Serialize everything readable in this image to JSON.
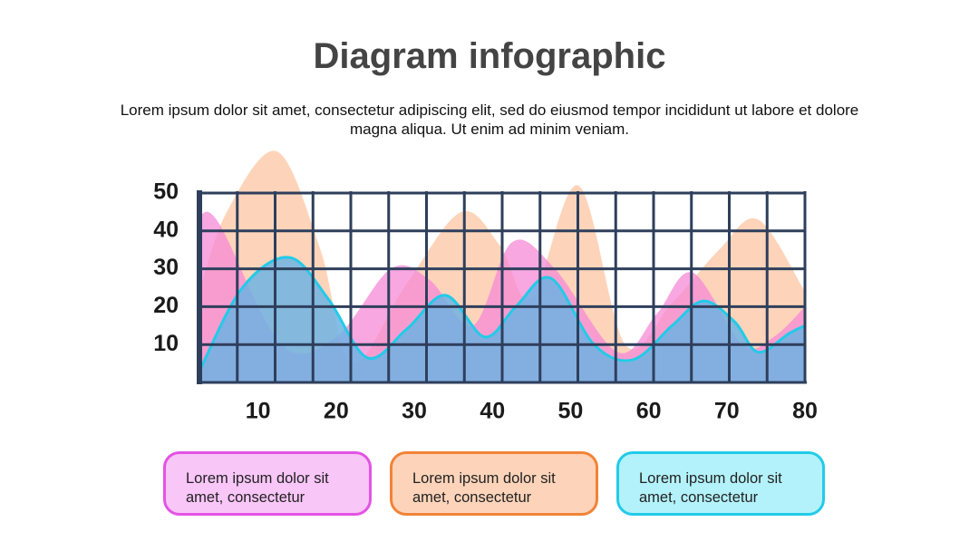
{
  "chart_data": {
    "type": "area",
    "title": "Diagram infographic",
    "subtitle": "Lorem ipsum dolor sit amet, consectetur adipiscing elit, sed do eiusmod tempor incididunt ut labore et dolore magna aliqua. Ut enim ad minim veniam.",
    "xlim": [
      2.5,
      80
    ],
    "xticks": [
      10,
      20,
      30,
      40,
      50,
      60,
      70,
      80
    ],
    "ylim": [
      0,
      50
    ],
    "yticks": [
      10,
      20,
      30,
      40,
      50
    ],
    "grid": true,
    "series": [
      {
        "name": "Lorem ipsum dolor sit amet, consectetur",
        "color": "#f58ad6",
        "line_color": "#e353e3",
        "box_color": "#f9c6f8",
        "x": [
          2.5,
          5,
          13,
          20,
          27,
          32,
          37.5,
          42.5,
          48,
          56,
          61,
          65.6,
          72,
          76,
          80
        ],
        "values": [
          44,
          42,
          10,
          12,
          30,
          27,
          15,
          37,
          30,
          8,
          18,
          29,
          10,
          12,
          20
        ]
      },
      {
        "name": "Lorem ipsum dolor sit amet, consectetur",
        "color": "#fcc5a3",
        "line_color": "#f28338",
        "box_color": "#fdd4ba",
        "x": [
          2.5,
          6,
          12.4,
          18,
          22,
          29,
          36,
          41,
          45,
          51,
          57,
          63,
          69,
          74,
          80
        ],
        "values": [
          24,
          45,
          61,
          35,
          5,
          26,
          45,
          36,
          22,
          52,
          10,
          21,
          35,
          43,
          24
        ]
      },
      {
        "name": "Lorem ipsum dolor sit amet, consectetur",
        "color": "#6fb3e3",
        "line_color": "#22cbe8",
        "box_color": "#b3f2fa",
        "outline": true,
        "x": [
          2.5,
          8,
          14,
          19,
          24,
          29,
          34,
          39,
          43,
          47.5,
          53,
          58,
          63,
          67,
          71,
          74,
          78,
          80
        ],
        "values": [
          3,
          25,
          33,
          22,
          6.5,
          14,
          23,
          12,
          20,
          27.5,
          10,
          6,
          15,
          21.5,
          16,
          8,
          13,
          15
        ]
      }
    ]
  }
}
